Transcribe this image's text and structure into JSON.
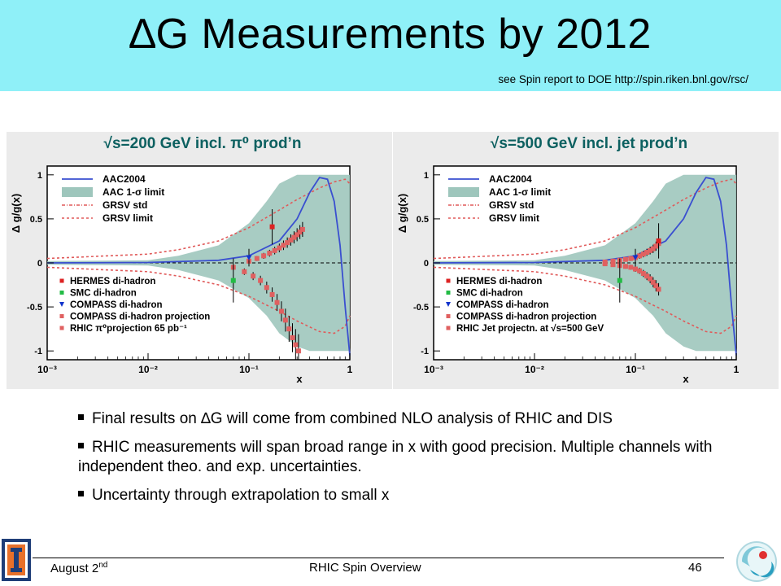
{
  "slide": {
    "title": "∆G Measurements by 2012",
    "subtitle": "see Spin report to DOE http://spin.riken.bnl.gov/rsc/",
    "bullets": [
      "Final results on ∆G will come from combined NLO analysis of RHIC and DIS",
      "RHIC measurements will span broad range in x with good  precision. Multiple channels with independent theo. and exp. uncertainties.",
      "Uncertainty through extrapolation to small x"
    ],
    "footer": {
      "left": "August 2",
      "left_sup": "nd",
      "center": "RHIC Spin Overview",
      "page": "46"
    }
  },
  "colors": {
    "header_bg": "#8ff0f8",
    "band": "#9ec6bc",
    "aac_line": "#3a4fd0",
    "grsv": "#e05a5a",
    "rhic_points": "#e06060",
    "hermes": "#dd2222",
    "smc": "#22bb44",
    "compass": "#1133cc",
    "caption": "#0c6060"
  },
  "chart_data": [
    {
      "type": "line",
      "title": "√s=200 GeV incl. π⁰ prod’n",
      "xlabel": "x",
      "ylabel": "Δ g/g(x)",
      "x_scale": "log",
      "xlim": [
        0.001,
        1
      ],
      "ylim": [
        -1.1,
        1.1
      ],
      "x_ticks": [
        "10⁻³",
        "10⁻²",
        "10⁻¹",
        "1"
      ],
      "y_ticks": [
        "-1",
        "-0.5",
        "0",
        "0.5",
        "1"
      ],
      "legend_upper": [
        "AAC2004",
        "AAC 1-σ limit",
        "GRSV std",
        "GRSV limit"
      ],
      "legend_lower": [
        "HERMES di-hadron",
        "SMC di-hadron",
        "COMPASS di-hadron",
        "COMPASS di-hadron projection",
        "RHIC π⁰projection 65 pb⁻¹"
      ],
      "aac2004": {
        "x": [
          0.001,
          0.01,
          0.05,
          0.1,
          0.2,
          0.3,
          0.4,
          0.5,
          0.6,
          0.7,
          0.8,
          0.9,
          1.0
        ],
        "y": [
          0,
          0.005,
          0.03,
          0.08,
          0.25,
          0.5,
          0.8,
          0.97,
          0.95,
          0.7,
          0.2,
          -0.5,
          -1.05
        ]
      },
      "band_upper": {
        "x": [
          0.001,
          0.01,
          0.02,
          0.05,
          0.1,
          0.15,
          0.2,
          0.3,
          0.4,
          1.0
        ],
        "y": [
          0.02,
          0.03,
          0.08,
          0.2,
          0.45,
          0.7,
          0.9,
          1.0,
          1.0,
          1.0
        ]
      },
      "band_lower": {
        "x": [
          0.001,
          0.01,
          0.02,
          0.05,
          0.1,
          0.15,
          0.2,
          0.3,
          0.4,
          0.6,
          1.0
        ],
        "y": [
          -0.02,
          -0.03,
          -0.08,
          -0.2,
          -0.4,
          -0.6,
          -0.8,
          -0.95,
          -1.0,
          -1.0,
          -1.0
        ]
      },
      "grsv_upper": {
        "x": [
          0.001,
          0.01,
          0.02,
          0.05,
          0.1,
          0.2,
          0.3,
          0.5,
          0.7,
          0.9,
          1.0
        ],
        "y": [
          0.05,
          0.1,
          0.15,
          0.25,
          0.4,
          0.6,
          0.72,
          0.85,
          0.92,
          0.95,
          0.9
        ]
      },
      "grsv_lower": {
        "x": [
          0.001,
          0.01,
          0.02,
          0.05,
          0.1,
          0.2,
          0.3,
          0.5,
          0.7,
          0.9,
          1.0
        ],
        "y": [
          -0.05,
          -0.1,
          -0.15,
          -0.25,
          -0.38,
          -0.55,
          -0.66,
          -0.78,
          -0.8,
          -0.72,
          -0.6
        ]
      },
      "rhic_projection_upper": {
        "x": [
          0.1,
          0.12,
          0.14,
          0.16,
          0.18,
          0.2,
          0.22,
          0.24,
          0.26,
          0.28,
          0.3,
          0.32,
          0.34
        ],
        "y": [
          0.02,
          0.05,
          0.08,
          0.11,
          0.14,
          0.17,
          0.2,
          0.23,
          0.26,
          0.29,
          0.32,
          0.35,
          0.38
        ]
      },
      "rhic_projection_lower": {
        "x": [
          0.07,
          0.09,
          0.11,
          0.13,
          0.15,
          0.17,
          0.19,
          0.21,
          0.23,
          0.25,
          0.27,
          0.29,
          0.31
        ],
        "y": [
          -0.05,
          -0.1,
          -0.15,
          -0.2,
          -0.28,
          -0.36,
          -0.45,
          -0.55,
          -0.65,
          -0.75,
          -0.85,
          -0.93,
          -1.0
        ]
      },
      "hermes": {
        "x": [
          0.17
        ],
        "y": [
          0.41
        ]
      },
      "smc": {
        "x": [
          0.07
        ],
        "y": [
          -0.2
        ]
      },
      "compass": {
        "x": [
          0.1
        ],
        "y": [
          0.06
        ]
      }
    },
    {
      "type": "line",
      "title": "√s=500 GeV incl. jet prod’n",
      "xlabel": "x",
      "ylabel": "Δ g/g(x)",
      "x_scale": "log",
      "xlim": [
        0.001,
        1
      ],
      "ylim": [
        -1.1,
        1.1
      ],
      "x_ticks": [
        "10⁻³",
        "10⁻²",
        "10⁻¹",
        "1"
      ],
      "y_ticks": [
        "-1",
        "-0.5",
        "0",
        "0.5",
        "1"
      ],
      "legend_upper": [
        "AAC2004",
        "AAC 1-σ limit",
        "GRSV std",
        "GRSV limit"
      ],
      "legend_lower": [
        "HERMES di-hadron",
        "SMC di-hadron",
        "COMPASS di-hadron",
        "COMPASS di-hadron projection",
        "RHIC Jet projectn. at √s=500 GeV"
      ],
      "aac2004": {
        "x": [
          0.001,
          0.01,
          0.05,
          0.1,
          0.2,
          0.3,
          0.4,
          0.5,
          0.6,
          0.7,
          0.8,
          0.9,
          1.0
        ],
        "y": [
          0,
          0.005,
          0.03,
          0.08,
          0.25,
          0.5,
          0.8,
          0.97,
          0.95,
          0.7,
          0.2,
          -0.5,
          -1.05
        ]
      },
      "band_upper": {
        "x": [
          0.001,
          0.01,
          0.02,
          0.05,
          0.1,
          0.15,
          0.2,
          0.3,
          0.4,
          1.0
        ],
        "y": [
          0.02,
          0.03,
          0.08,
          0.2,
          0.45,
          0.7,
          0.9,
          1.0,
          1.0,
          1.0
        ]
      },
      "band_lower": {
        "x": [
          0.001,
          0.01,
          0.02,
          0.05,
          0.1,
          0.15,
          0.2,
          0.3,
          0.4,
          0.6,
          1.0
        ],
        "y": [
          -0.02,
          -0.03,
          -0.08,
          -0.2,
          -0.4,
          -0.6,
          -0.8,
          -0.95,
          -1.0,
          -1.0,
          -1.0
        ]
      },
      "grsv_upper": {
        "x": [
          0.001,
          0.01,
          0.02,
          0.05,
          0.1,
          0.2,
          0.3,
          0.5,
          0.7,
          0.9,
          1.0
        ],
        "y": [
          0.05,
          0.1,
          0.15,
          0.25,
          0.4,
          0.6,
          0.72,
          0.85,
          0.92,
          0.95,
          0.9
        ]
      },
      "grsv_lower": {
        "x": [
          0.001,
          0.01,
          0.02,
          0.05,
          0.1,
          0.2,
          0.3,
          0.5,
          0.7,
          0.9,
          1.0
        ],
        "y": [
          -0.05,
          -0.1,
          -0.15,
          -0.25,
          -0.38,
          -0.55,
          -0.66,
          -0.78,
          -0.8,
          -0.72,
          -0.6
        ]
      },
      "rhic_projection_upper": {
        "x": [
          0.05,
          0.06,
          0.07,
          0.08,
          0.09,
          0.1,
          0.11,
          0.12,
          0.13,
          0.14,
          0.15,
          0.16,
          0.17
        ],
        "y": [
          0.01,
          0.02,
          0.03,
          0.04,
          0.05,
          0.06,
          0.08,
          0.1,
          0.12,
          0.14,
          0.16,
          0.19,
          0.22
        ]
      },
      "rhic_projection_lower": {
        "x": [
          0.05,
          0.06,
          0.07,
          0.08,
          0.09,
          0.1,
          0.11,
          0.12,
          0.13,
          0.14,
          0.15,
          0.16,
          0.17
        ],
        "y": [
          -0.01,
          -0.02,
          -0.03,
          -0.04,
          -0.05,
          -0.07,
          -0.09,
          -0.12,
          -0.15,
          -0.18,
          -0.22,
          -0.26,
          -0.3
        ]
      },
      "hermes": {
        "x": [
          0.17
        ],
        "y": [
          0.25
        ]
      },
      "smc": {
        "x": [
          0.07
        ],
        "y": [
          -0.2
        ]
      },
      "compass": {
        "x": [
          0.1
        ],
        "y": [
          0.06
        ]
      }
    }
  ]
}
